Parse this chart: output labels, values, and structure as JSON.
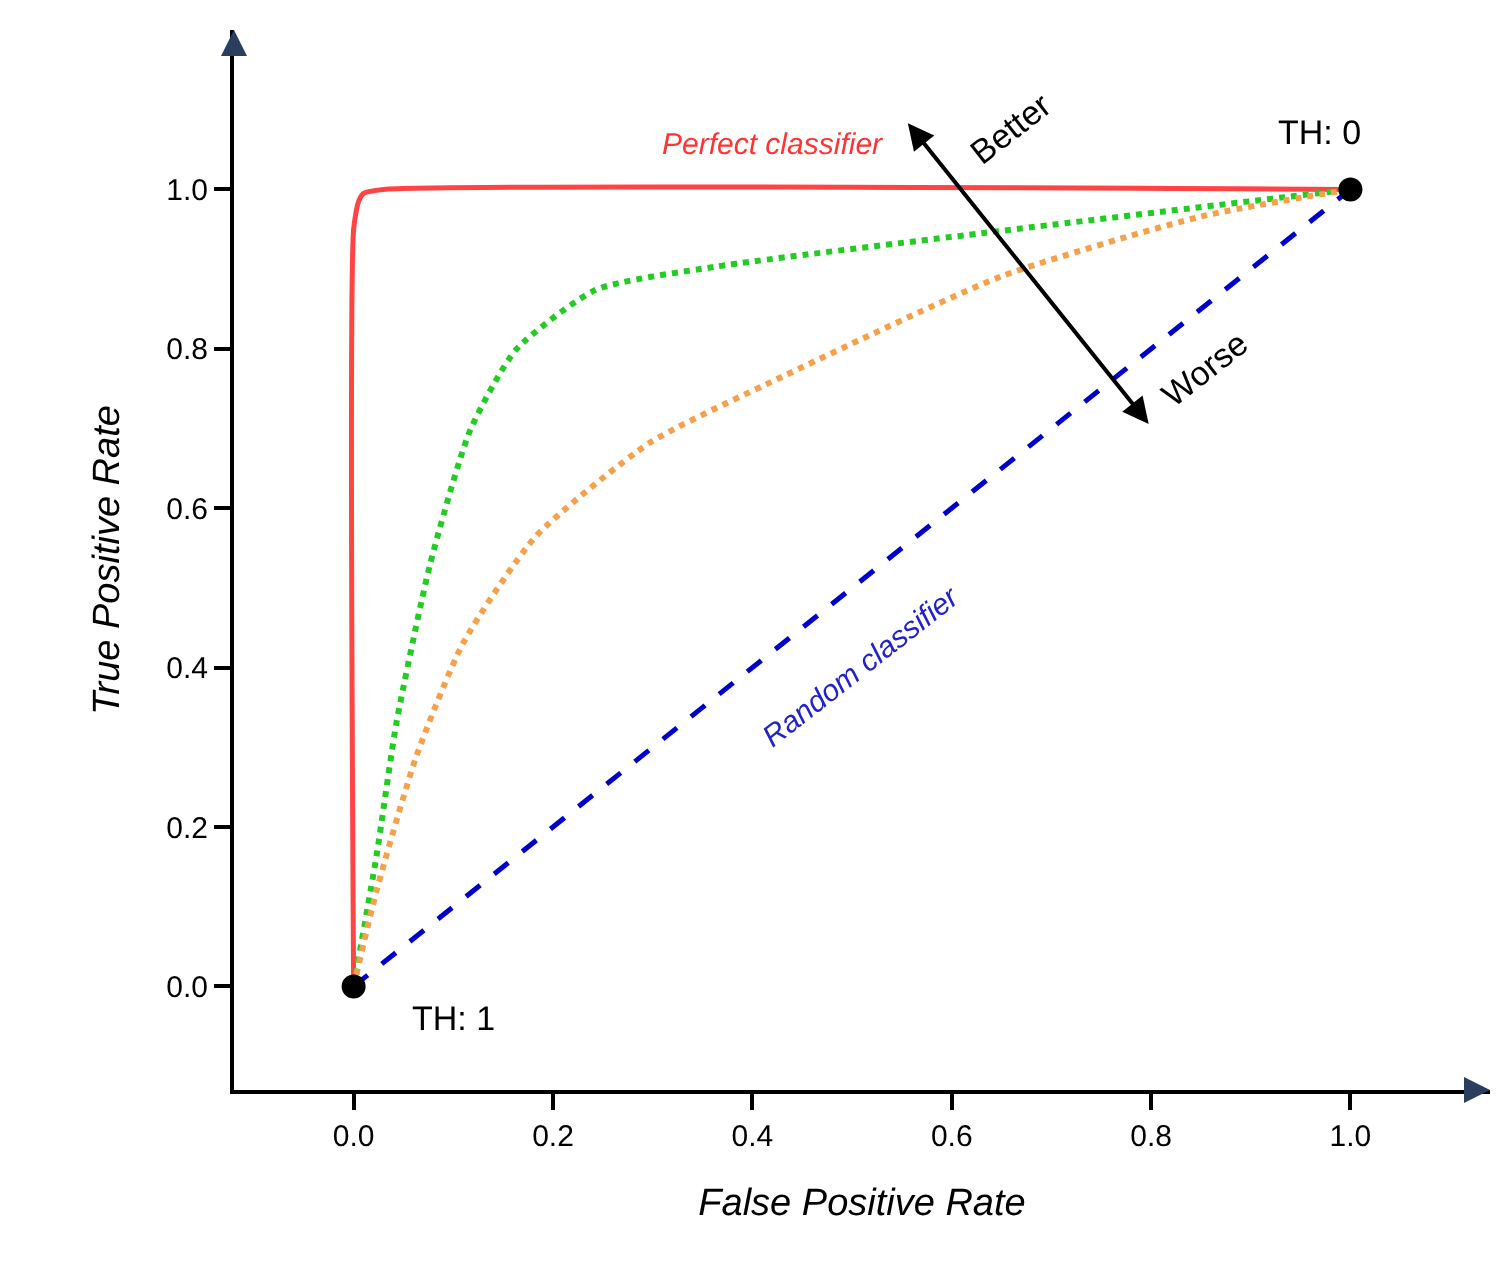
{
  "chart_data": {
    "type": "line",
    "xlabel": "False Positive Rate",
    "ylabel": "True Positive Rate",
    "xlim": [
      -0.12,
      1.14
    ],
    "ylim": [
      -0.13,
      1.2
    ],
    "xticks": [
      {
        "value": 0,
        "label": "0.0"
      },
      0.2,
      0.4,
      0.6,
      0.8,
      {
        "value": 1,
        "label": "1.0"
      }
    ],
    "yticks": [
      {
        "value": 0,
        "label": "0.0"
      },
      0.2,
      0.4,
      0.6,
      0.8,
      {
        "value": 1,
        "label": "1.0"
      }
    ],
    "legend": false,
    "series": [
      {
        "color": "#ff4444",
        "line_style": "solid",
        "marker": "none",
        "x": [
          0,
          0,
          0.005,
          0.01,
          0.03,
          1
        ],
        "values": [
          0,
          0.95,
          0.985,
          0.995,
          1,
          1
        ]
      },
      {
        "color": "#22cc22",
        "line_style": "dotted",
        "marker": "none",
        "x": [
          0,
          0.023,
          0.043,
          0.077,
          0.117,
          0.163,
          0.243,
          0.363,
          0.63,
          1
        ],
        "values": [
          0,
          0.164,
          0.331,
          0.531,
          0.698,
          0.799,
          0.874,
          0.903,
          0.945,
          1
        ]
      },
      {
        "color": "#f5a04a",
        "line_style": "dotted",
        "marker": "none",
        "x": [
          0,
          0.023,
          0.063,
          0.11,
          0.183,
          0.297,
          0.43,
          0.65,
          0.85,
          1
        ],
        "values": [
          0,
          0.12,
          0.289,
          0.431,
          0.565,
          0.682,
          0.765,
          0.891,
          0.966,
          1
        ]
      },
      {
        "color": "#0000cc",
        "line_style": "dashed",
        "marker": "none",
        "x": [
          0,
          1
        ],
        "values": [
          0,
          1
        ]
      },
      {
        "type": "scatter",
        "color": "#000000",
        "marker": "circle",
        "x": [
          0,
          1
        ],
        "values": [
          0,
          1
        ]
      }
    ],
    "annotations": [
      "Perfect classifier",
      "Random classifier",
      "TH: 1",
      "TH: 0",
      "Better",
      "Worse"
    ]
  }
}
